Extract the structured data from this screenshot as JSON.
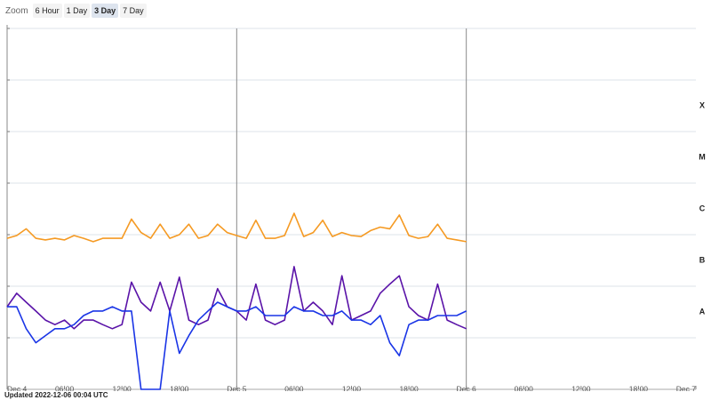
{
  "controls": {
    "label": "Zoom",
    "options": [
      "6 Hour",
      "1 Day",
      "3 Day",
      "7 Day"
    ],
    "active": 2
  },
  "footer": "Updated 2022-12-06 00:04 UTC",
  "chart_data": {
    "type": "line",
    "log_y": true,
    "grid": true,
    "x": [
      0,
      1,
      2,
      3,
      4,
      5,
      6,
      7,
      8,
      9,
      10,
      11,
      12,
      13,
      14,
      15,
      16,
      17,
      18,
      19,
      20,
      21,
      22,
      23,
      24,
      25,
      26,
      27,
      28,
      29,
      30,
      31,
      32,
      33,
      34,
      35,
      36,
      37,
      38,
      39,
      40,
      41,
      42,
      43,
      44,
      45,
      46,
      47,
      48
    ],
    "xlim": [
      0,
      72
    ],
    "xticks": [
      {
        "value": 0,
        "label": "Dec 4"
      },
      {
        "value": 6,
        "label": "06:00"
      },
      {
        "value": 12,
        "label": "12:00"
      },
      {
        "value": 18,
        "label": "18:00"
      },
      {
        "value": 24,
        "label": "Dec 5"
      },
      {
        "value": 30,
        "label": "06:00"
      },
      {
        "value": 36,
        "label": "12:00"
      },
      {
        "value": 42,
        "label": "18:00"
      },
      {
        "value": 48,
        "label": "Dec 6"
      },
      {
        "value": 54,
        "label": "06:00"
      },
      {
        "value": 60,
        "label": "12:00"
      },
      {
        "value": 66,
        "label": "18:00"
      },
      {
        "value": 72,
        "label": "Dec 7"
      }
    ],
    "ylim": [
      1e-09,
      0.01
    ],
    "yticks": [
      1e-09,
      1e-08,
      1e-07,
      1e-06,
      1e-05,
      0.0001,
      0.001,
      0.01
    ],
    "bands": [
      {
        "label": "X",
        "range": [
          0.0001,
          0.001
        ]
      },
      {
        "label": "M",
        "range": [
          1e-05,
          0.0001
        ]
      },
      {
        "label": "C",
        "range": [
          1e-06,
          1e-05
        ]
      },
      {
        "label": "B",
        "range": [
          1e-07,
          1e-06
        ]
      },
      {
        "label": "A",
        "range": [
          1e-08,
          1e-07
        ]
      }
    ],
    "series": [
      {
        "color": "#f59a23",
        "values": [
          8.5e-07,
          9.6e-07,
          1.3e-06,
          8.5e-07,
          7.9e-07,
          8.5e-07,
          7.9e-07,
          9.6e-07,
          8.5e-07,
          7.3e-07,
          8.5e-07,
          8.5e-07,
          8.5e-07,
          2e-06,
          1.1e-06,
          8.5e-07,
          1.6e-06,
          8.5e-07,
          1e-06,
          1.6e-06,
          8.5e-07,
          9.6e-07,
          1.6e-06,
          1.1e-06,
          9.6e-07,
          8.5e-07,
          1.9e-06,
          8.5e-07,
          8.5e-07,
          9.6e-07,
          2.6e-06,
          9.2e-07,
          1.1e-06,
          1.9e-06,
          9.2e-07,
          1.1e-06,
          9.6e-07,
          9.2e-07,
          1.2e-06,
          1.4e-06,
          1.3e-06,
          2.4e-06,
          9.6e-07,
          8.5e-07,
          9.2e-07,
          1.6e-06,
          8.5e-07,
          7.9e-07,
          7.3e-07
        ]
      },
      {
        "color": "#5a13a8",
        "values": [
          4e-08,
          7.3e-08,
          4.9e-08,
          3.3e-08,
          2.2e-08,
          1.8e-08,
          2.2e-08,
          1.5e-08,
          2.2e-08,
          2.2e-08,
          1.8e-08,
          1.5e-08,
          1.8e-08,
          1.2e-07,
          4.9e-08,
          3.3e-08,
          1.2e-07,
          3.3e-08,
          1.5e-07,
          2.2e-08,
          1.8e-08,
          2.2e-08,
          9e-08,
          4e-08,
          3.3e-08,
          2.2e-08,
          1.1e-07,
          2.2e-08,
          1.8e-08,
          2.2e-08,
          2.4e-07,
          3.3e-08,
          4.9e-08,
          3.3e-08,
          1.8e-08,
          1.6e-07,
          2.2e-08,
          2.7e-08,
          3.3e-08,
          7.3e-08,
          1.1e-07,
          1.6e-07,
          4e-08,
          2.7e-08,
          2.2e-08,
          1.1e-07,
          2.2e-08,
          1.8e-08,
          1.5e-08
        ]
      },
      {
        "color": "#1a35e6",
        "values": [
          4e-08,
          4e-08,
          1.5e-08,
          8e-09,
          1.1e-08,
          1.5e-08,
          1.5e-08,
          1.8e-08,
          2.7e-08,
          3.3e-08,
          3.3e-08,
          4e-08,
          3.3e-08,
          3.3e-08,
          1e-09,
          1e-09,
          1e-09,
          3.3e-08,
          5e-09,
          1.1e-08,
          2.2e-08,
          3.3e-08,
          4.9e-08,
          4e-08,
          3.3e-08,
          3.3e-08,
          4e-08,
          2.7e-08,
          2.7e-08,
          2.7e-08,
          4e-08,
          3.3e-08,
          3.3e-08,
          2.7e-08,
          2.7e-08,
          3.3e-08,
          2.2e-08,
          2.2e-08,
          1.8e-08,
          2.7e-08,
          8e-09,
          4.5e-09,
          1.8e-08,
          2.2e-08,
          2.2e-08,
          2.7e-08,
          2.7e-08,
          2.7e-08,
          3.3e-08
        ]
      }
    ]
  }
}
